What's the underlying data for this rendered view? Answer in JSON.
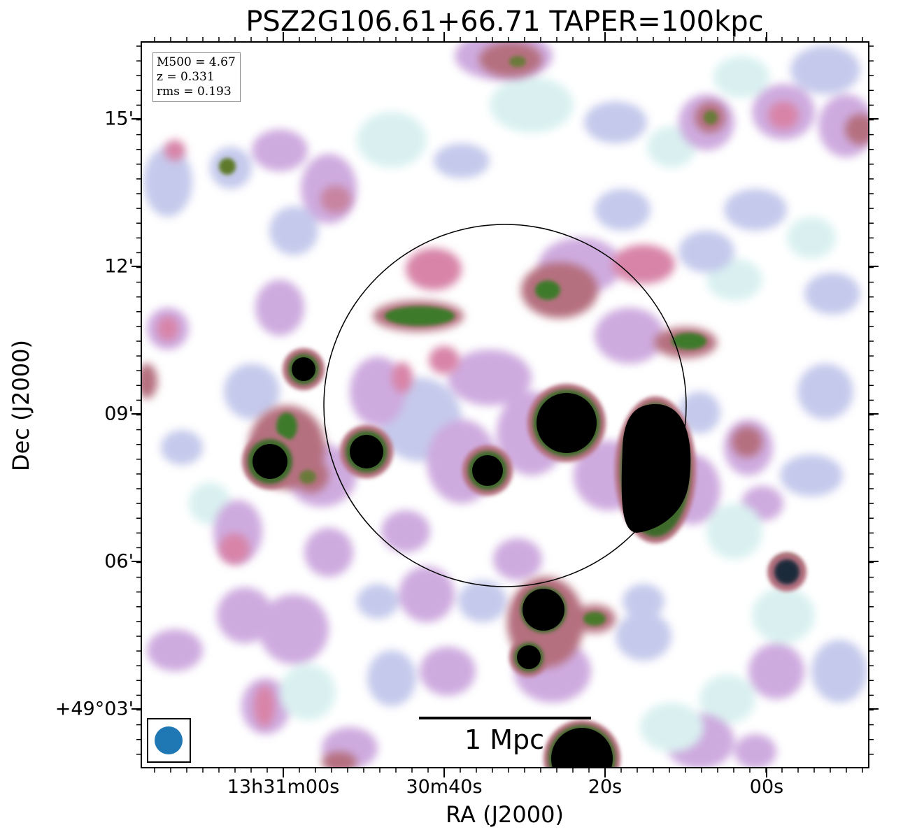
{
  "title": "PSZ2G106.61+66.71 TAPER=100kpc",
  "axes": {
    "xlabel": "RA (J2000)",
    "ylabel": "Dec (J2000)",
    "xticks": [
      "13h31m00s",
      "30m40s",
      "20s",
      "00s"
    ],
    "yticks": [
      "15'",
      "12'",
      "09'",
      "06'",
      "+49°03'"
    ]
  },
  "info": {
    "mass": "M500 = 4.67",
    "redshift": "z = 0.331",
    "rms": "rms = 0.193"
  },
  "scalebar": {
    "label": "1 Mpc"
  },
  "colors": {
    "frame": "#000000",
    "beam": "#1f77b4",
    "cmap_low_cyan": "#d6efef",
    "cmap_lavender": "#b6bde6",
    "cmap_violet": "#c29ae0",
    "cmap_pink": "#d884a8",
    "cmap_rose": "#b5707f",
    "cmap_green": "#3e7a2a",
    "cmap_dark": "#1a2a3a",
    "saturated": "#000000"
  },
  "overlays": {
    "circle": "R500 aperture",
    "beam_icon": "beam-ellipse"
  }
}
